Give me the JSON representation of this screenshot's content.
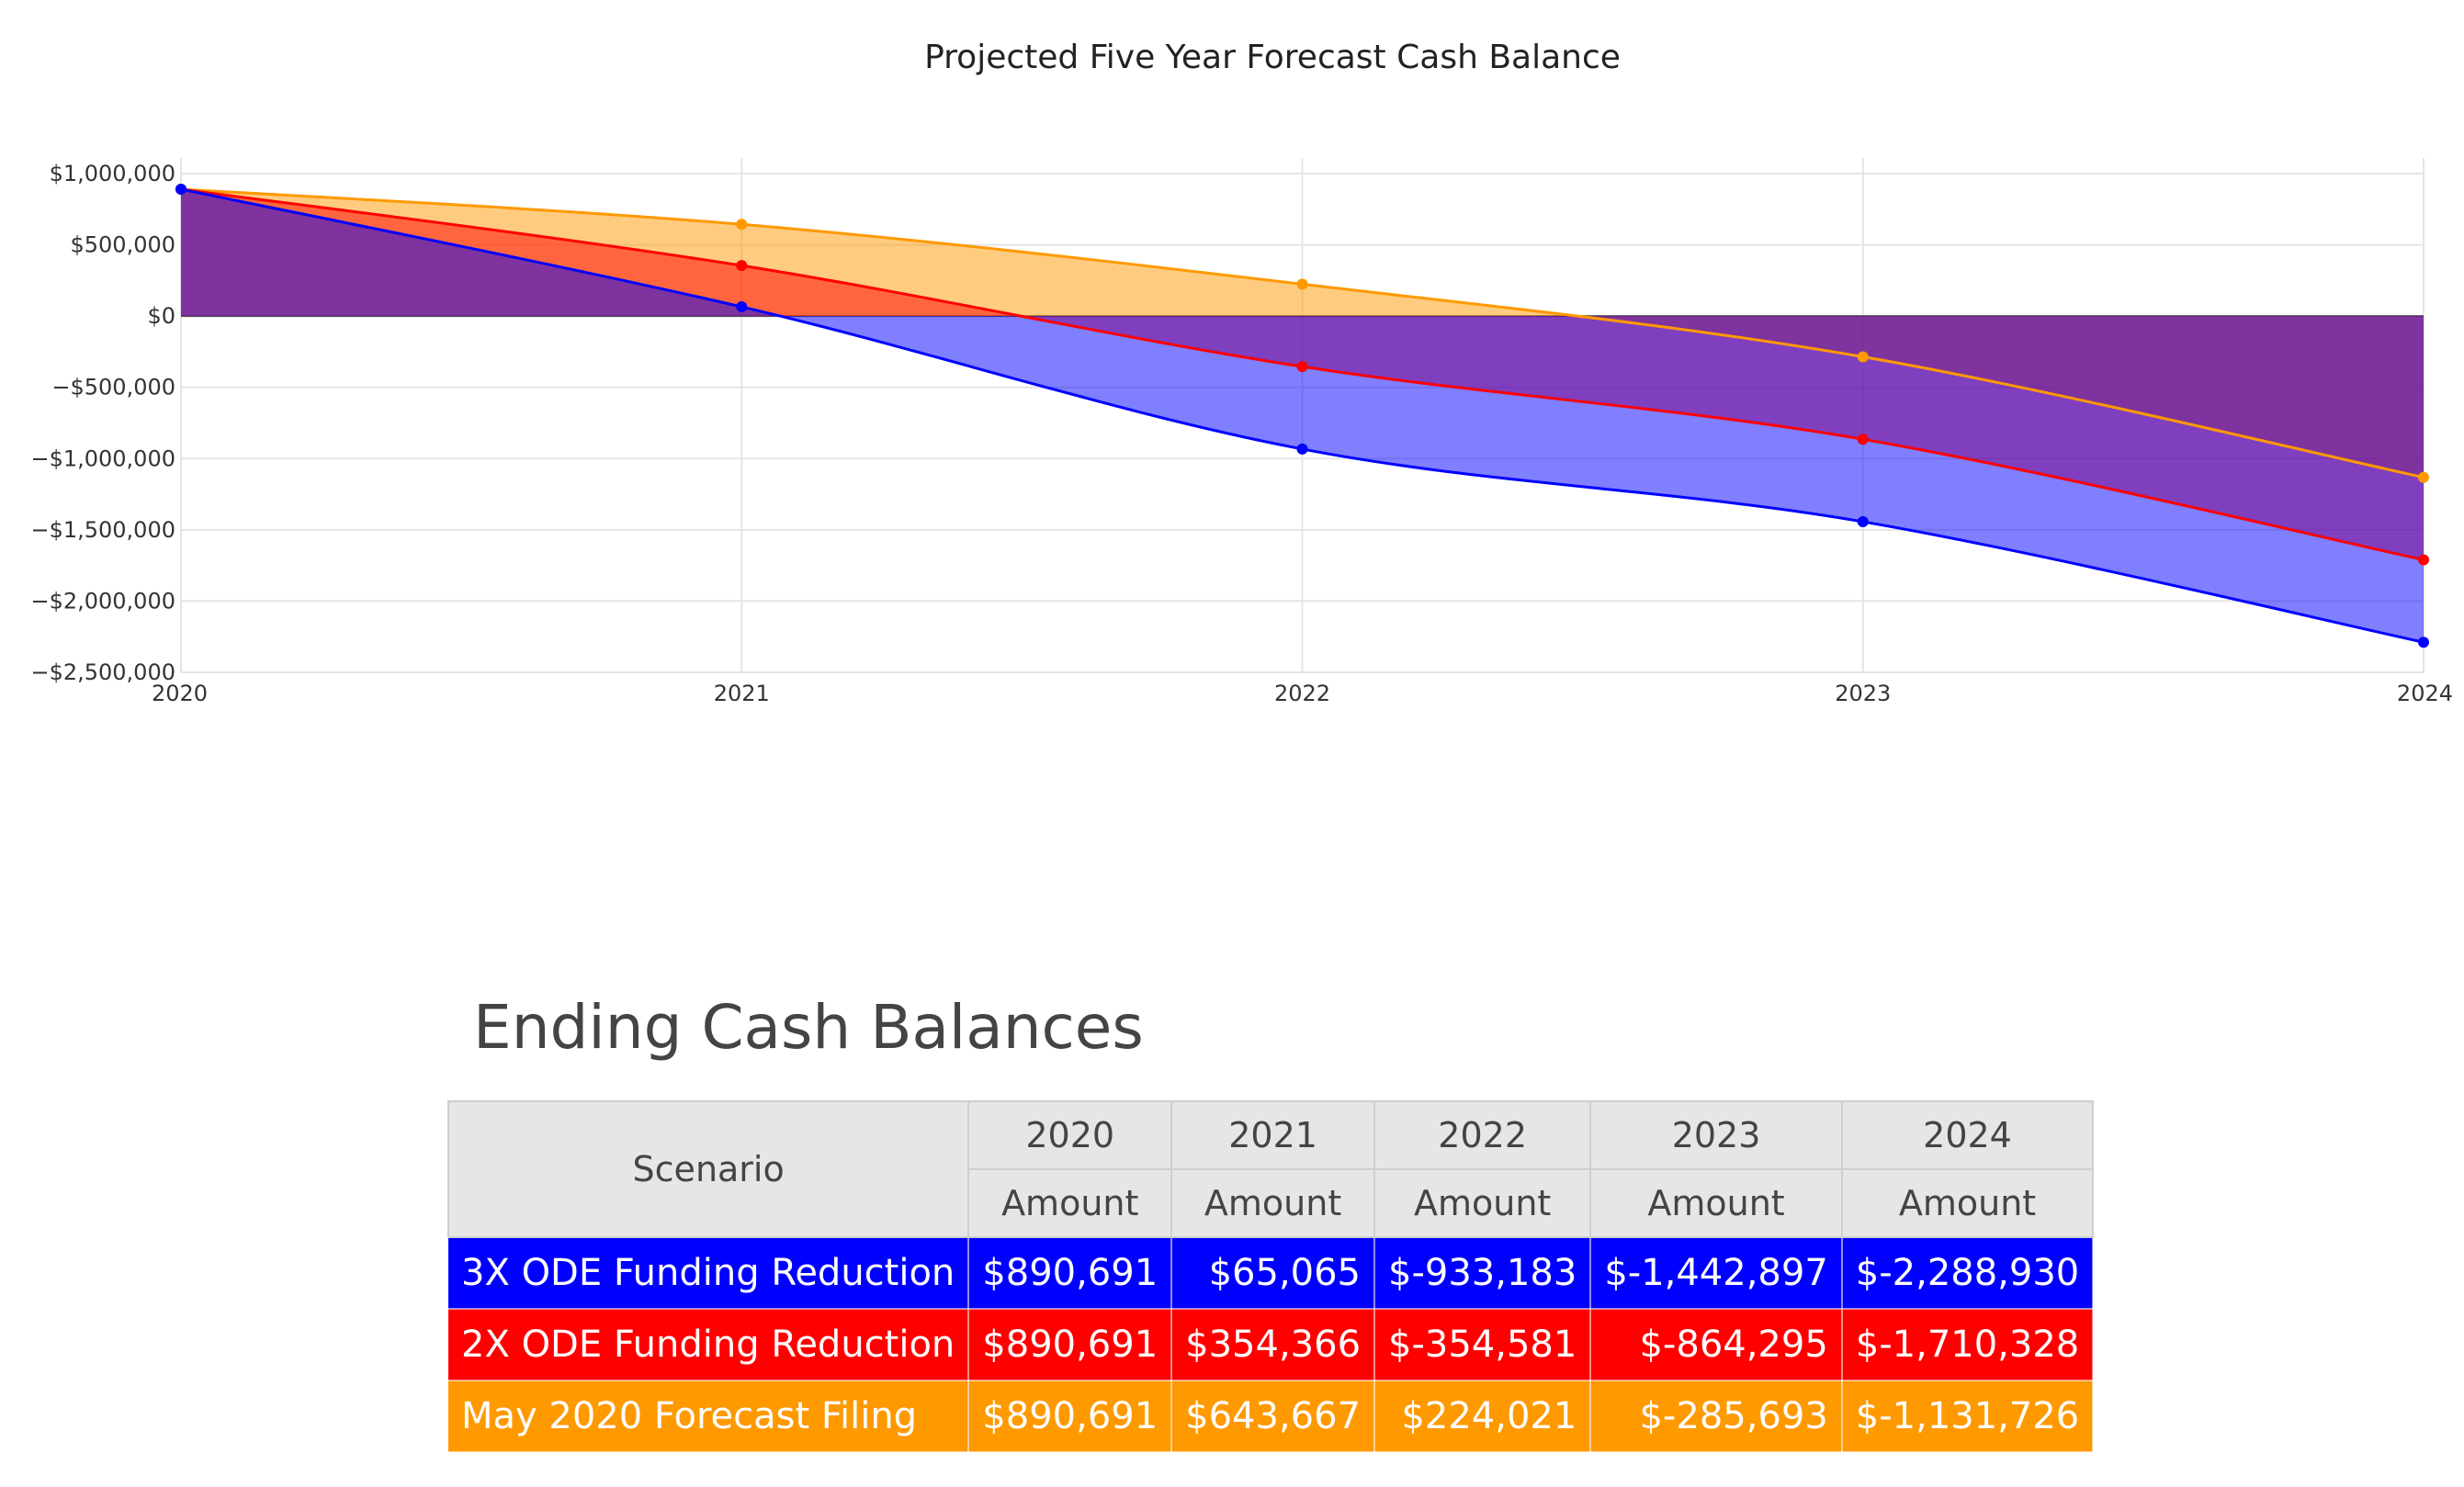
{
  "chart_data": {
    "type": "area",
    "title": "Projected Five Year Forecast Cash Balance",
    "xlabel": "",
    "ylabel": "",
    "x": [
      "2020",
      "2021",
      "2022",
      "2023",
      "2024"
    ],
    "ylim": [
      -2500000,
      1000000
    ],
    "yticks": [
      1000000,
      500000,
      0,
      -500000,
      -1000000,
      -1500000,
      -2000000,
      -2500000
    ],
    "ytick_labels": [
      "$1,000,000",
      "$500,000",
      "$0",
      "−$500,000",
      "−$1,000,000",
      "−$1,500,000",
      "−$2,000,000",
      "−$2,500,000"
    ],
    "grid": true,
    "legend": "none",
    "series": [
      {
        "values": [
          890691,
          65065,
          -933183,
          -1442897,
          -2288930
        ],
        "color": "#0000ff"
      },
      {
        "values": [
          890691,
          354366,
          -354581,
          -864295,
          -1710328
        ],
        "color": "#ff0000"
      },
      {
        "values": [
          890691,
          643667,
          224021,
          -285693,
          -1131726
        ],
        "color": "#ff9900"
      }
    ]
  },
  "table": {
    "title": "Ending Cash Balances",
    "scenario_header": "Scenario",
    "years": [
      "2020",
      "2021",
      "2022",
      "2023",
      "2024"
    ],
    "sub_header": "Amount",
    "rows": [
      {
        "scenario": "3X ODE Funding Reduction",
        "color": "#0000ff",
        "values": [
          "$890,691",
          "$65,065",
          "$-933,183",
          "$-1,442,897",
          "$-2,288,930"
        ]
      },
      {
        "scenario": "2X ODE Funding Reduction",
        "color": "#ff0000",
        "values": [
          "$890,691",
          "$354,366",
          "$-354,581",
          "$-864,295",
          "$-1,710,328"
        ]
      },
      {
        "scenario": "May 2020 Forecast Filing",
        "color": "#ff9900",
        "values": [
          "$890,691",
          "$643,667",
          "$224,021",
          "$-285,693",
          "$-1,131,726"
        ]
      }
    ]
  }
}
